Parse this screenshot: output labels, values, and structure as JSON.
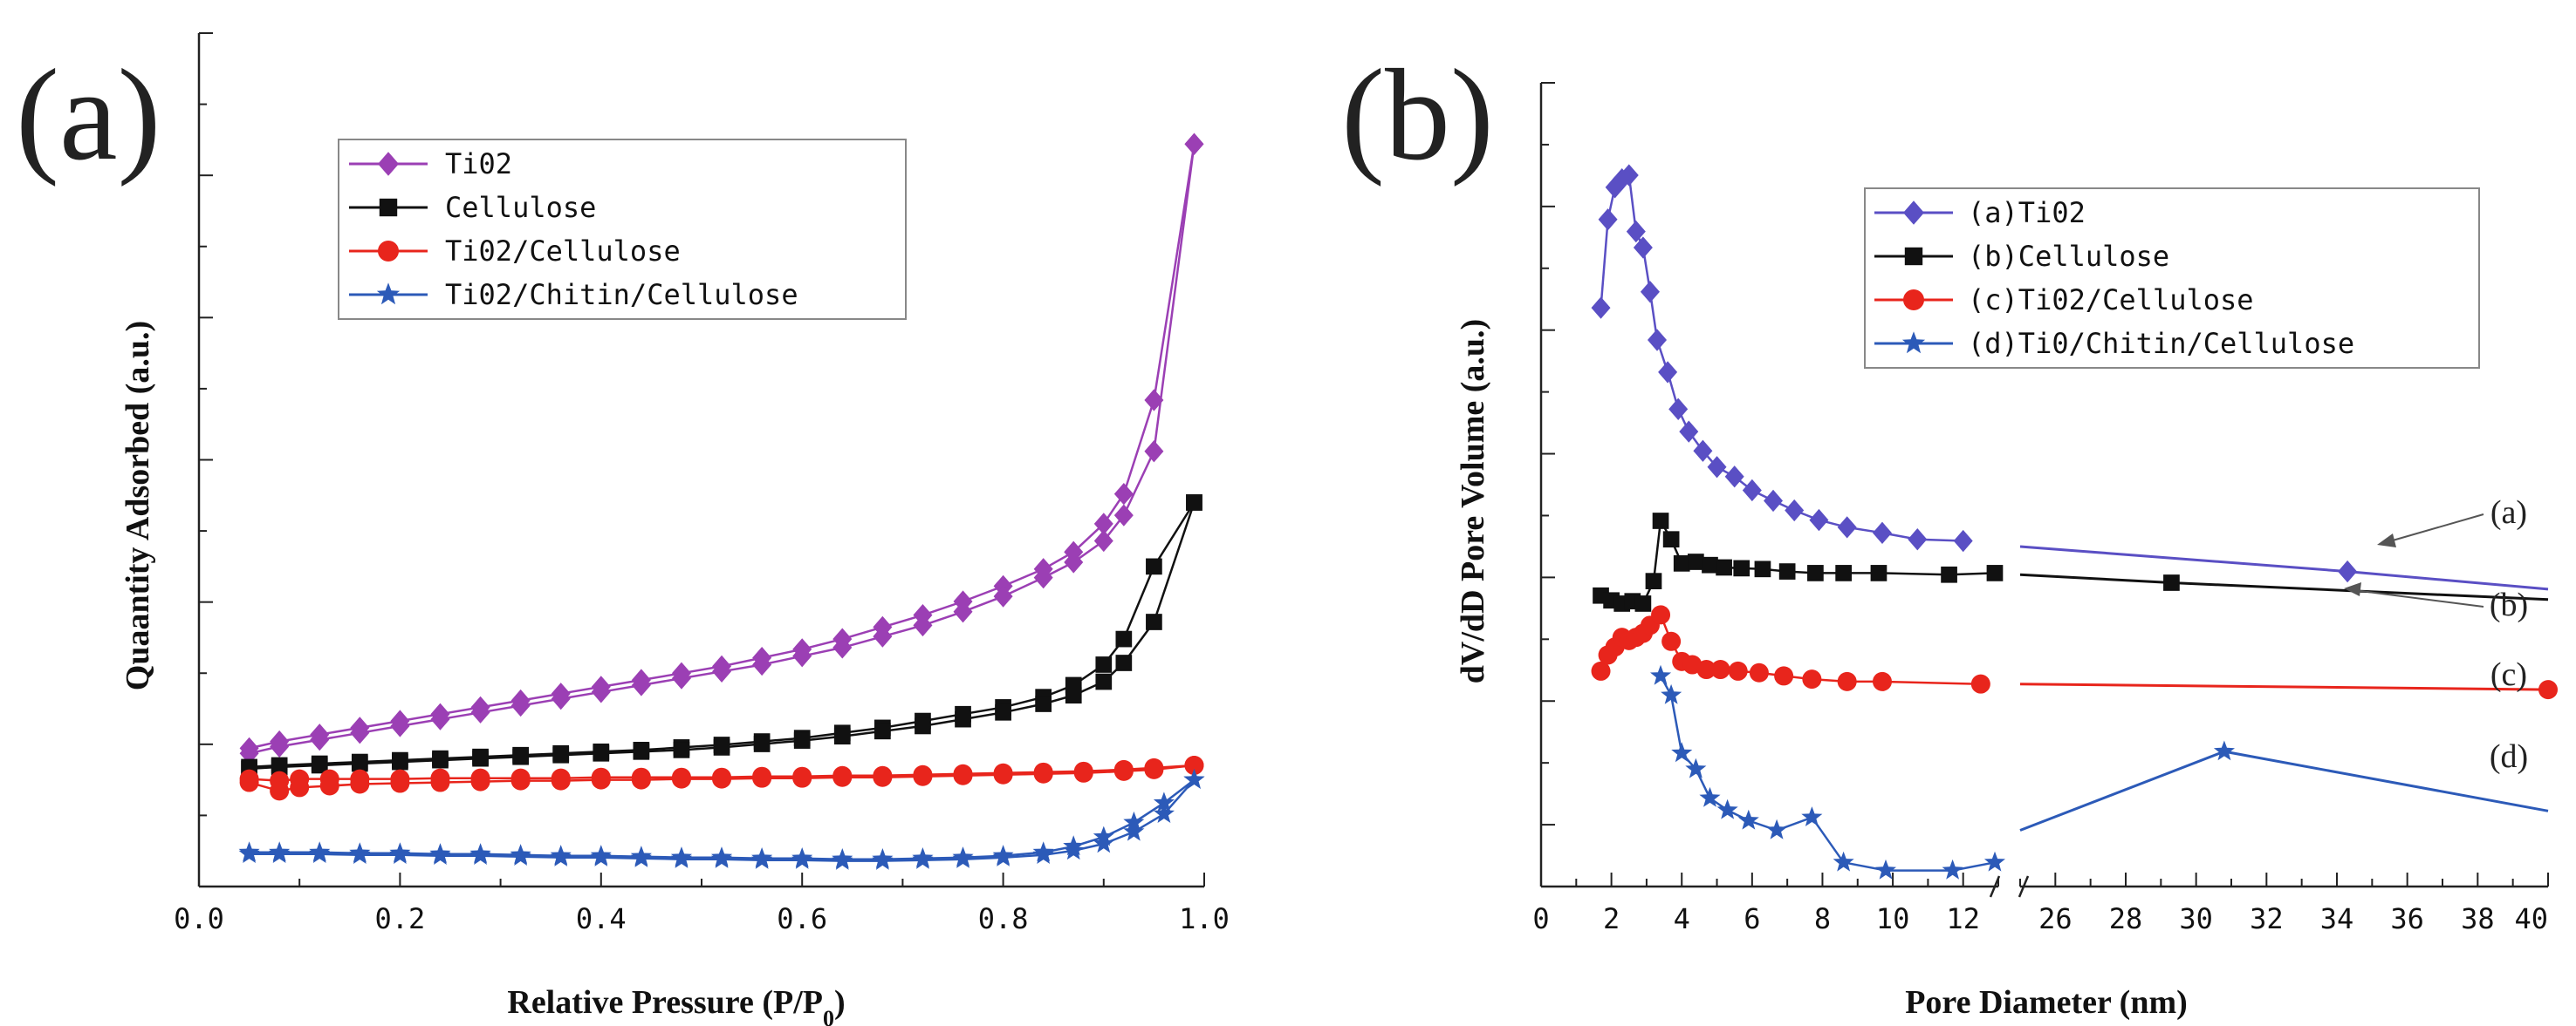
{
  "panels": [
    {
      "letter": "(a)"
    },
    {
      "letter": "(b)"
    }
  ],
  "chart_data": [
    {
      "type": "line",
      "panel": "(a)",
      "xlabel": "Relative Pressure (P/P",
      "xlabel_sub": "0",
      "xlabel_end": ")",
      "ylabel": "Quaantity Adsorbed (a.u.)",
      "xlim": [
        0,
        1.0
      ],
      "ylim": [
        0,
        1.0
      ],
      "xticks": [
        "0.0",
        "0.2",
        "0.4",
        "0.6",
        "0.8",
        "1.0"
      ],
      "legend_position": "top-center",
      "series": [
        {
          "name": "Ti02",
          "color": "#9b3fb4",
          "marker": "diamond",
          "x": [
            0.05,
            0.08,
            0.12,
            0.16,
            0.2,
            0.24,
            0.28,
            0.32,
            0.36,
            0.4,
            0.44,
            0.48,
            0.52,
            0.56,
            0.6,
            0.64,
            0.68,
            0.72,
            0.76,
            0.8,
            0.84,
            0.87,
            0.9,
            0.92,
            0.95,
            0.99
          ],
          "y": [
            0.162,
            0.17,
            0.178,
            0.186,
            0.194,
            0.202,
            0.21,
            0.218,
            0.226,
            0.234,
            0.242,
            0.25,
            0.258,
            0.268,
            0.278,
            0.29,
            0.304,
            0.318,
            0.334,
            0.352,
            0.372,
            0.392,
            0.425,
            0.46,
            0.57,
            0.87
          ],
          "y2": [
            0.156,
            0.164,
            0.172,
            0.18,
            0.188,
            0.196,
            0.204,
            0.212,
            0.22,
            0.228,
            0.236,
            0.244,
            0.252,
            0.26,
            0.27,
            0.28,
            0.293,
            0.306,
            0.322,
            0.34,
            0.362,
            0.38,
            0.405,
            0.435,
            0.51,
            0.87
          ]
        },
        {
          "name": "Cellulose",
          "color": "#111111",
          "marker": "square",
          "x": [
            0.05,
            0.08,
            0.12,
            0.16,
            0.2,
            0.24,
            0.28,
            0.32,
            0.36,
            0.4,
            0.44,
            0.48,
            0.52,
            0.56,
            0.6,
            0.64,
            0.68,
            0.72,
            0.76,
            0.8,
            0.84,
            0.87,
            0.9,
            0.92,
            0.95,
            0.99
          ],
          "y": [
            0.14,
            0.142,
            0.144,
            0.146,
            0.148,
            0.15,
            0.152,
            0.154,
            0.156,
            0.158,
            0.16,
            0.163,
            0.166,
            0.17,
            0.174,
            0.18,
            0.186,
            0.194,
            0.202,
            0.21,
            0.222,
            0.236,
            0.26,
            0.29,
            0.375,
            0.45
          ],
          "y2": [
            0.138,
            0.14,
            0.142,
            0.144,
            0.146,
            0.148,
            0.15,
            0.152,
            0.154,
            0.156,
            0.158,
            0.16,
            0.163,
            0.167,
            0.171,
            0.176,
            0.182,
            0.188,
            0.196,
            0.204,
            0.214,
            0.224,
            0.24,
            0.262,
            0.31,
            0.45
          ]
        },
        {
          "name": "Ti02/Cellulose",
          "color": "#e8251c",
          "marker": "circle",
          "x": [
            0.05,
            0.08,
            0.1,
            0.13,
            0.16,
            0.2,
            0.24,
            0.28,
            0.32,
            0.36,
            0.4,
            0.44,
            0.48,
            0.52,
            0.56,
            0.6,
            0.64,
            0.68,
            0.72,
            0.76,
            0.8,
            0.84,
            0.88,
            0.92,
            0.95,
            0.99
          ],
          "y": [
            0.126,
            0.124,
            0.126,
            0.126,
            0.126,
            0.126,
            0.127,
            0.127,
            0.127,
            0.127,
            0.128,
            0.128,
            0.128,
            0.128,
            0.129,
            0.129,
            0.13,
            0.13,
            0.131,
            0.132,
            0.133,
            0.134,
            0.135,
            0.137,
            0.139,
            0.142
          ],
          "y2": [
            0.122,
            0.112,
            0.116,
            0.118,
            0.12,
            0.121,
            0.122,
            0.123,
            0.124,
            0.124,
            0.125,
            0.125,
            0.126,
            0.126,
            0.127,
            0.127,
            0.128,
            0.128,
            0.129,
            0.13,
            0.131,
            0.132,
            0.133,
            0.135,
            0.137,
            0.142
          ]
        },
        {
          "name": "Ti02/Chitin/Cellulose",
          "color": "#2c5ab8",
          "marker": "star",
          "x": [
            0.05,
            0.08,
            0.12,
            0.16,
            0.2,
            0.24,
            0.28,
            0.32,
            0.36,
            0.4,
            0.44,
            0.48,
            0.52,
            0.56,
            0.6,
            0.64,
            0.68,
            0.72,
            0.76,
            0.8,
            0.84,
            0.87,
            0.9,
            0.93,
            0.96,
            0.99
          ],
          "y": [
            0.04,
            0.04,
            0.04,
            0.039,
            0.039,
            0.038,
            0.038,
            0.037,
            0.036,
            0.036,
            0.035,
            0.034,
            0.034,
            0.033,
            0.033,
            0.032,
            0.032,
            0.033,
            0.034,
            0.036,
            0.04,
            0.047,
            0.058,
            0.075,
            0.098,
            0.125
          ],
          "y2": [
            0.038,
            0.038,
            0.038,
            0.037,
            0.037,
            0.036,
            0.036,
            0.035,
            0.034,
            0.034,
            0.033,
            0.032,
            0.032,
            0.031,
            0.031,
            0.03,
            0.03,
            0.031,
            0.032,
            0.034,
            0.037,
            0.042,
            0.05,
            0.064,
            0.085,
            0.125
          ]
        }
      ]
    },
    {
      "type": "line",
      "panel": "(b)",
      "xlabel": "Pore Diameter (nm)",
      "ylabel": "dV/dD Pore Volume (a.u.)",
      "broken_axis": true,
      "xlim_left": [
        0,
        13
      ],
      "xlim_right": [
        25,
        40
      ],
      "ylim": [
        0,
        1.0
      ],
      "xticks_left": [
        "0",
        "2",
        "4",
        "6",
        "8",
        "10",
        "12"
      ],
      "xticks_right": [
        "26",
        "28",
        "30",
        "32",
        "34",
        "36",
        "38",
        "40"
      ],
      "legend_position": "top-right",
      "series": [
        {
          "name": "(a)Ti02",
          "color": "#5a4fc4",
          "marker": "diamond",
          "x": [
            1.7,
            1.9,
            2.1,
            2.3,
            2.5,
            2.7,
            2.9,
            3.1,
            3.3,
            3.6,
            3.9,
            4.2,
            4.6,
            5.0,
            5.5,
            6.0,
            6.6,
            7.2,
            7.9,
            8.7,
            9.7,
            10.7,
            12.0
          ],
          "y": [
            0.72,
            0.83,
            0.87,
            0.88,
            0.885,
            0.815,
            0.795,
            0.74,
            0.68,
            0.64,
            0.594,
            0.566,
            0.542,
            0.522,
            0.51,
            0.493,
            0.48,
            0.468,
            0.456,
            0.447,
            0.44,
            0.432,
            0.43
          ],
          "x_right": [
            25.0,
            34.3,
            40.0
          ],
          "y_right": [
            0.423,
            0.392,
            0.37
          ],
          "marker_right": [
            34.3
          ],
          "annotation": "(a)"
        },
        {
          "name": "(b)Cellulose",
          "color": "#111111",
          "marker": "square",
          "x": [
            1.7,
            2.0,
            2.3,
            2.6,
            2.9,
            3.2,
            3.4,
            3.7,
            4.0,
            4.4,
            4.8,
            5.2,
            5.7,
            6.3,
            7.0,
            7.8,
            8.6,
            9.6,
            11.6,
            12.9
          ],
          "y": [
            0.362,
            0.356,
            0.352,
            0.355,
            0.352,
            0.38,
            0.455,
            0.432,
            0.402,
            0.404,
            0.4,
            0.397,
            0.396,
            0.395,
            0.392,
            0.39,
            0.39,
            0.39,
            0.388,
            0.39
          ],
          "x_right": [
            25.0,
            29.3,
            40.0
          ],
          "y_right": [
            0.388,
            0.378,
            0.357
          ],
          "marker_right": [
            29.3
          ],
          "annotation": "(b)"
        },
        {
          "name": "(c)Ti02/Cellulose",
          "color": "#e8251c",
          "marker": "circle",
          "x": [
            1.7,
            1.9,
            2.1,
            2.3,
            2.5,
            2.7,
            2.9,
            3.1,
            3.4,
            3.7,
            4.0,
            4.3,
            4.7,
            5.1,
            5.6,
            6.2,
            6.9,
            7.7,
            8.7,
            9.7,
            12.5
          ],
          "y": [
            0.268,
            0.288,
            0.298,
            0.31,
            0.306,
            0.31,
            0.315,
            0.325,
            0.338,
            0.305,
            0.28,
            0.276,
            0.27,
            0.27,
            0.268,
            0.266,
            0.262,
            0.258,
            0.255,
            0.255,
            0.252
          ],
          "x_right": [
            25.0,
            40.0
          ],
          "y_right": [
            0.252,
            0.245
          ],
          "marker_right": [
            40.0
          ],
          "annotation": "(c)"
        },
        {
          "name": "(d)Ti0/Chitin/Cellulose",
          "color": "#2c5ab8",
          "marker": "star",
          "x": [
            3.4,
            3.7,
            4.0,
            4.4,
            4.8,
            5.3,
            5.9,
            6.7,
            7.7,
            8.6,
            9.8,
            11.7,
            12.9
          ],
          "y": [
            0.262,
            0.238,
            0.166,
            0.146,
            0.11,
            0.095,
            0.082,
            0.07,
            0.086,
            0.03,
            0.02,
            0.02,
            0.03
          ],
          "x_right": [
            25.0,
            30.8,
            40.0
          ],
          "y_right": [
            0.07,
            0.168,
            0.094
          ],
          "marker_right": [
            30.8
          ],
          "annotation": "(d)"
        }
      ]
    }
  ]
}
